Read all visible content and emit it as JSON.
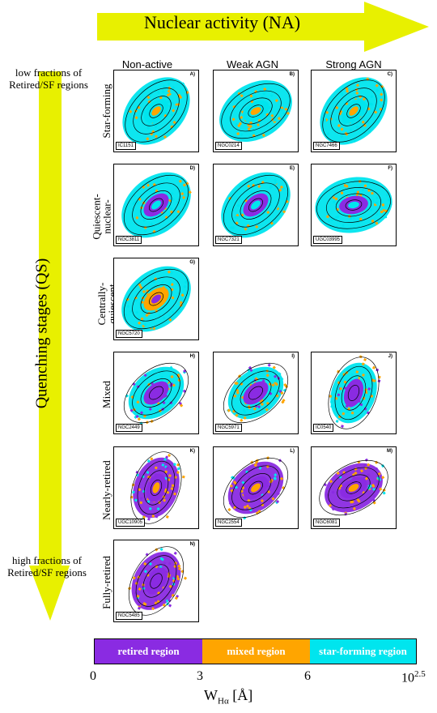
{
  "header": {
    "na_label": "Nuclear activity (NA)"
  },
  "side": {
    "qs_label": "Quenching stages (QS)",
    "top_note": "low fractions of  Retired/SF regions",
    "bottom_note": "high fractions of  Retired/SF regions"
  },
  "columns": [
    "Non-active",
    "Weak AGN",
    "Strong AGN"
  ],
  "rows": [
    "Star-forming",
    "Quiescent-nuclear-ring",
    "Centrally-quiescent",
    "Mixed",
    "Nearly-retired",
    "Fully-retired"
  ],
  "panels": [
    {
      "id": "A)",
      "galaxy": "IC1151",
      "scheme": "sf"
    },
    {
      "id": "B)",
      "galaxy": "NGC0214",
      "scheme": "sf"
    },
    {
      "id": "C)",
      "galaxy": "NGC7466",
      "scheme": "sf"
    },
    {
      "id": "D)",
      "galaxy": "NGC3811",
      "scheme": "ring"
    },
    {
      "id": "E)",
      "galaxy": "NGC7321",
      "scheme": "ring"
    },
    {
      "id": "F)",
      "galaxy": "UGC03995",
      "scheme": "ring"
    },
    {
      "id": "G)",
      "galaxy": "NGC5720",
      "scheme": "cq"
    },
    {
      "id": "H)",
      "galaxy": "NGC2449",
      "scheme": "mixed"
    },
    {
      "id": "I)",
      "galaxy": "NGC5971",
      "scheme": "mixed"
    },
    {
      "id": "J)",
      "galaxy": "IC0540",
      "scheme": "mixed"
    },
    {
      "id": "K)",
      "galaxy": "UGC10905",
      "scheme": "nr"
    },
    {
      "id": "L)",
      "galaxy": "NGC2554",
      "scheme": "nr"
    },
    {
      "id": "M)",
      "galaxy": "NGC6081",
      "scheme": "nr"
    },
    {
      "id": "N)",
      "galaxy": "NGC5485",
      "scheme": "fr"
    }
  ],
  "colorbar": {
    "segments": [
      {
        "label": "retired region",
        "color": "#8a2be2"
      },
      {
        "label": "mixed region",
        "color": "#ffa500"
      },
      {
        "label": "star-forming region",
        "color": "#00e5ee"
      }
    ],
    "ticks": [
      "0",
      "3",
      "6",
      "10"
    ],
    "tick_sup": "2.5",
    "xlabel_main": "W",
    "xlabel_sub": "Hα",
    "xlabel_unit": " [Å]"
  },
  "colors": {
    "arrow": "#e8f000",
    "retired": "#8a2be2",
    "mixed": "#ffa500",
    "sf": "#00e5ee"
  }
}
